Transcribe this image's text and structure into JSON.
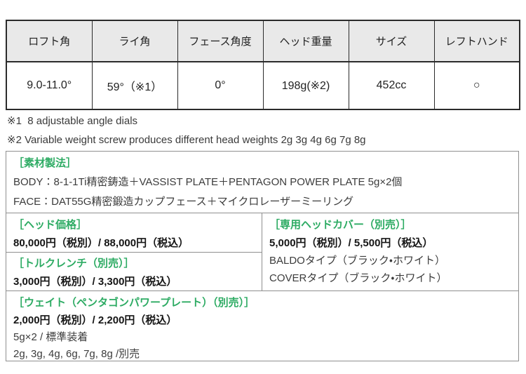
{
  "colors": {
    "accent_green": "#2dab63",
    "header_bg": "#e9e9e9",
    "spec_border": "#2b2b2b",
    "detail_border": "#8f8f8f"
  },
  "spec_table": {
    "headers": [
      "ロフト角",
      "ライ角",
      "フェース角度",
      "ヘッド重量",
      "サイズ",
      "レフトハンド"
    ],
    "values": [
      "9.0-11.0°",
      "59°（※1）",
      "0°",
      "198g(※2)",
      "452cc",
      "○"
    ]
  },
  "notes": {
    "note1": "※1  8 adjustable angle dials",
    "note2": "※2 Variable weight screw produces different head weights 2g 3g 4g 6g 7g 8g"
  },
  "material": {
    "title": "［素材製法］",
    "body_line": "BODY：8-1-1Ti精密鋳造＋VASSIST PLATE＋PENTAGON POWER PLATE 5g×2個",
    "face_line": "FACE：DAT55G精密鍛造カップフェース＋マイクロレーザーミーリング"
  },
  "head_price": {
    "title": "［ヘッド価格］",
    "price": "80,000円（税別）/ 88,000円（税込）"
  },
  "torque_wrench": {
    "title": "［トルクレンチ（別売）］",
    "price": "3,000円（税別）/ 3,300円（税込）"
  },
  "head_cover": {
    "title": "［専用ヘッドカバー（別売）］",
    "price": "5,000円（税別）/ 5,500円（税込）",
    "type_baldo": "BALDOタイプ（ブラック・ホワイト）",
    "type_cover": "COVERタイプ（ブラック・ホワイト）"
  },
  "weight": {
    "title": "［ウェイト（ペンタゴンパワープレート）（別売）］",
    "price": "2,000円（税別）/ 2,200円（税込）",
    "standard": "5g×2 / 標準装着",
    "optional": "2g, 3g, 4g, 6g, 7g, 8g /別売"
  }
}
